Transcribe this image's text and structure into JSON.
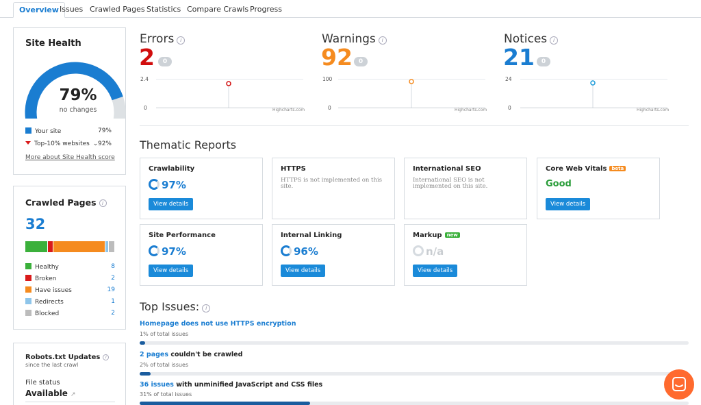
{
  "tabs": [
    {
      "label": "Overview"
    },
    {
      "label": "Issues"
    },
    {
      "label": "Crawled Pages"
    },
    {
      "label": "Statistics"
    },
    {
      "label": "Compare Crawls"
    },
    {
      "label": "Progress"
    }
  ],
  "site_health": {
    "title": "Site Health",
    "percent": "79%",
    "percent_value": 79,
    "top10_value": 92,
    "subtitle": "no changes",
    "legend": [
      {
        "label": "Your site",
        "value": "79%"
      },
      {
        "label": "Top-10% websites",
        "value": "92%"
      }
    ],
    "link": "More about Site Health score",
    "colors": {
      "site": "#1a7dd1",
      "rest": "#dde1e4",
      "top10_marker": "#d91a1a"
    }
  },
  "crawled_pages": {
    "title": "Crawled Pages",
    "info_icon": "info-icon",
    "total": "32",
    "rows": [
      {
        "label": "Healthy",
        "value": "8",
        "count": 8,
        "color": "#3bb03b"
      },
      {
        "label": "Broken",
        "value": "2",
        "count": 2,
        "color": "#d91a1a"
      },
      {
        "label": "Have issues",
        "value": "19",
        "count": 19,
        "color": "#f58b1f"
      },
      {
        "label": "Redirects",
        "value": "1",
        "count": 1,
        "color": "#8ec5ea"
      },
      {
        "label": "Blocked",
        "value": "2",
        "count": 2,
        "color": "#bcbcbc"
      }
    ]
  },
  "robots": {
    "title": "Robots.txt Updates",
    "subtitle": "since the last crawl",
    "file_status_label": "File status",
    "file_status_value": "Available"
  },
  "metrics": [
    {
      "title": "Errors",
      "value": "2",
      "badge": "0",
      "color": "#d10d0d",
      "ymax": "2.4",
      "ymin": "0",
      "credit": "Highcharts.com"
    },
    {
      "title": "Warnings",
      "value": "92",
      "badge": "0",
      "color": "#f58b1f",
      "ymax": "100",
      "ymin": "0",
      "credit": "Highcharts.com"
    },
    {
      "title": "Notices",
      "value": "21",
      "badge": "0",
      "color": "#1a7dd1",
      "ymax": "24",
      "ymin": "0",
      "credit": "Highcharts.com"
    }
  ],
  "thematic": {
    "title": "Thematic Reports",
    "cards": [
      {
        "name": "Crawlability",
        "pct": "97%",
        "button": "View details"
      },
      {
        "name": "HTTPS",
        "note": "HTTPS is not implemented on this site."
      },
      {
        "name": "International SEO",
        "note": "International SEO is not implemented on this site."
      },
      {
        "name": "Core Web Vitals",
        "badge": "beta",
        "status": "Good",
        "button": "View details"
      },
      {
        "name": "Site Performance",
        "pct": "97%",
        "button": "View details"
      },
      {
        "name": "Internal Linking",
        "pct": "96%",
        "button": "View details"
      },
      {
        "name": "Markup",
        "badge": "new",
        "pct": "n/a",
        "button": "View details"
      }
    ]
  },
  "top_issues": {
    "title": "Top Issues:",
    "items": [
      {
        "link": "",
        "text": "Homepage does not use HTTPS encryption",
        "pct_label": "1%",
        "pct_suffix": " of total issues",
        "fraction": 0.01
      },
      {
        "link": "2 pages",
        "text": " couldn't be crawled",
        "pct_label": "2%",
        "pct_suffix": " of total issues",
        "fraction": 0.02
      },
      {
        "link": "36 issues",
        "text": " with unminified JavaScript and CSS files",
        "pct_label": "31%",
        "pct_suffix": " of total issues",
        "fraction": 0.31
      }
    ]
  }
}
